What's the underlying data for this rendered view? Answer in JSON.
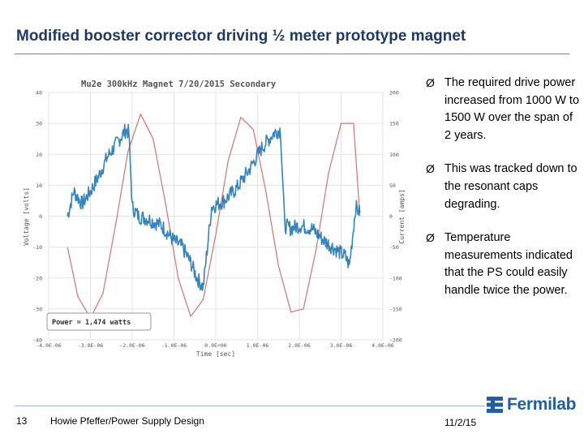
{
  "slide": {
    "title": "Modified booster corrector driving ½ meter prototype magnet",
    "bullets": [
      "The required drive power increased from 1000 W to 1500 W over the span of 2 years.",
      "This was tracked down to the resonant caps degrading.",
      "Temperature measurements indicated that the PS could easily handle twice the power."
    ],
    "bullet_marker": "Ø",
    "page_number": "13",
    "author": "Howie Pfeffer/Power Supply Design",
    "date": "11/2/15",
    "logo_text": "Fermilab"
  },
  "colors": {
    "title": "#1f3864",
    "voltage_trace": "#1f77b4",
    "current_trace": "#d9726e",
    "logo": "#1f5fa6"
  },
  "chart_data": {
    "type": "line",
    "title": "Mu2e 300kHz Magnet 7/20/2015 Secondary",
    "xlabel": "Time [sec]",
    "ylabel": "Voltage [volts]",
    "y2label": "Current [amps]",
    "annotation": "Power = 1,474 watts",
    "xlim": [
      -4e-06,
      4e-06
    ],
    "ylim": [
      -40,
      40
    ],
    "y2lim": [
      -200,
      200
    ],
    "x_ticks": [
      "-4.0E-06",
      "-3.0E-06",
      "-2.0E-06",
      "-1.0E-06",
      "0.0E+00",
      "1.0E-06",
      "2.0E-06",
      "3.0E-06",
      "4.0E-06"
    ],
    "y_ticks": [
      "40",
      "30",
      "20",
      "10",
      "0",
      "-10",
      "-20",
      "-30",
      "-40"
    ],
    "y2_ticks": [
      "200",
      "150",
      "100",
      "50",
      "0",
      "-50",
      "-100",
      "-150",
      "-200"
    ],
    "grid": true,
    "series": [
      {
        "axis": "left",
        "x": [
          -3.55e-06,
          -3.4e-06,
          -3.2e-06,
          -3e-06,
          -2.8e-06,
          -2.6e-06,
          -2.3e-06,
          -2.15e-06,
          -2.08e-06,
          -2e-06,
          -1.85e-06,
          -1.6e-06,
          -1.3e-06,
          -1e-06,
          -8e-07,
          -6e-07,
          -4.5e-07,
          -3e-07,
          -1e-07,
          2e-07,
          5e-07,
          8e-07,
          1.1e-06,
          1.4e-06,
          1.55e-06,
          1.65e-06,
          1.8e-06,
          2e-06,
          2.3e-06,
          2.6e-06,
          2.9e-06,
          3.1e-06,
          3.2e-06,
          3.35e-06,
          3.45e-06
        ],
        "y": [
          0,
          8,
          4,
          8,
          13,
          19,
          25,
          28,
          27,
          3,
          0,
          -1,
          -3,
          -8,
          -10,
          -15,
          -20,
          -23,
          3,
          5,
          9,
          15,
          22,
          27,
          28,
          -3,
          -4,
          -3,
          -4,
          -8,
          -11,
          -13,
          -16,
          3,
          1
        ]
      },
      {
        "axis": "right",
        "x": [
          -3.55e-06,
          -3.3e-06,
          -3e-06,
          -2.7e-06,
          -2.4e-06,
          -2.1e-06,
          -1.8e-06,
          -1.5e-06,
          -1.2e-06,
          -9e-07,
          -6e-07,
          -3e-07,
          0.0,
          3e-07,
          6e-07,
          9e-07,
          1.2e-06,
          1.5e-06,
          1.8e-06,
          2.1e-06,
          2.4e-06,
          2.7e-06,
          3e-06,
          3.3e-06,
          3.45e-06
        ],
        "y": [
          -50,
          -130,
          -165,
          -125,
          -15,
          105,
          165,
          125,
          20,
          -100,
          -162,
          -135,
          -30,
          90,
          160,
          140,
          40,
          -80,
          -155,
          -150,
          -55,
          70,
          150,
          150,
          0
        ]
      }
    ]
  }
}
